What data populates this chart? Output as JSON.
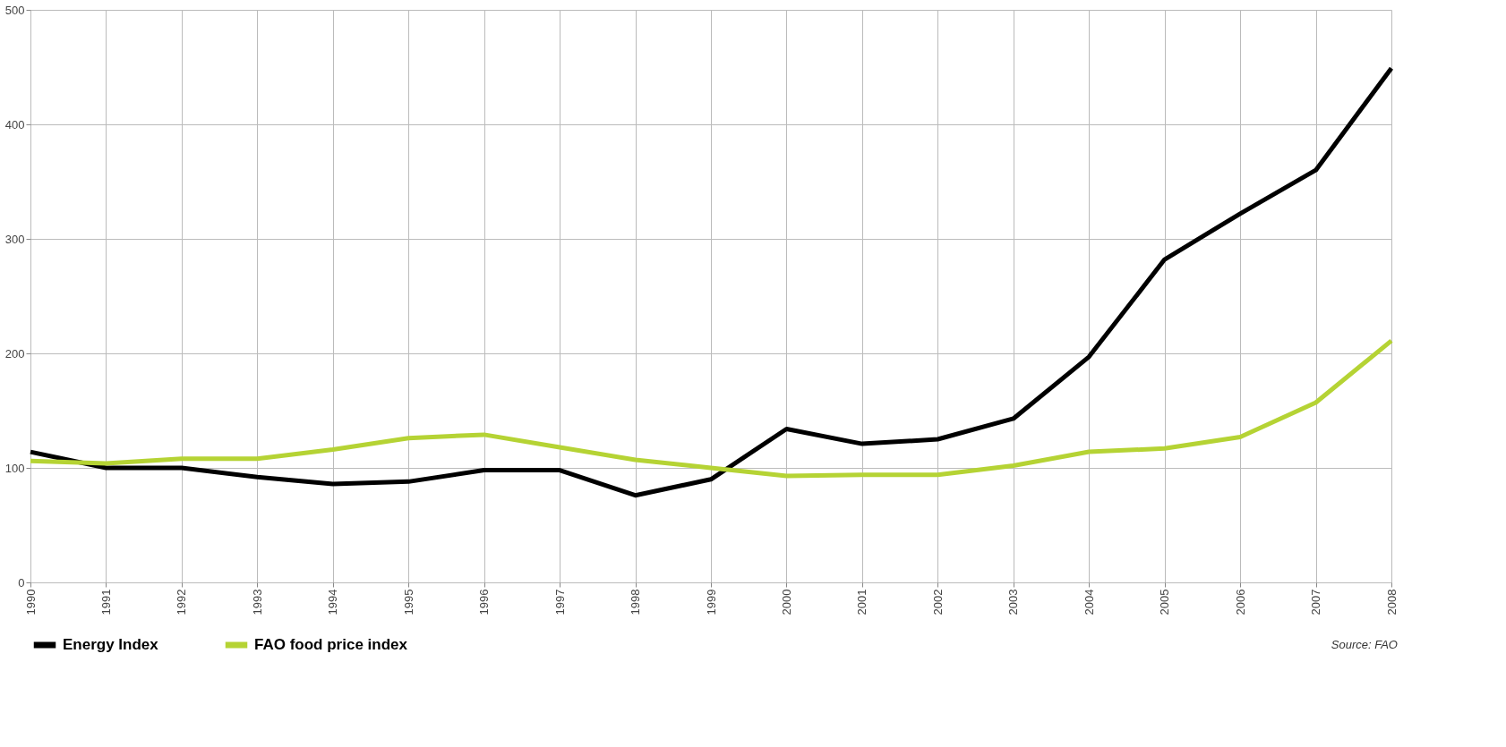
{
  "chart_data": {
    "type": "line",
    "categories": [
      "1990",
      "1991",
      "1992",
      "1993",
      "1994",
      "1995",
      "1996",
      "1997",
      "1998",
      "1999",
      "2000",
      "2001",
      "2002",
      "2003",
      "2004",
      "2005",
      "2006",
      "2007",
      "2008"
    ],
    "series": [
      {
        "name": "Energy Index",
        "color": "#000000",
        "values": [
          114,
          100,
          100,
          92,
          86,
          88,
          98,
          98,
          76,
          90,
          134,
          121,
          125,
          143,
          197,
          282,
          322,
          360,
          449
        ]
      },
      {
        "name": "FAO food price index",
        "color": "#b5d334",
        "values": [
          106,
          104,
          108,
          108,
          116,
          126,
          129,
          118,
          107,
          100,
          93,
          94,
          94,
          102,
          114,
          117,
          127,
          157,
          211
        ]
      }
    ],
    "ylim": [
      0,
      500
    ],
    "yticks": [
      0,
      100,
      200,
      300,
      400,
      500
    ],
    "grid": true,
    "legend": "bottom",
    "marker": "none",
    "line_style": "solid",
    "annotations": [
      "Source: FAO"
    ]
  }
}
